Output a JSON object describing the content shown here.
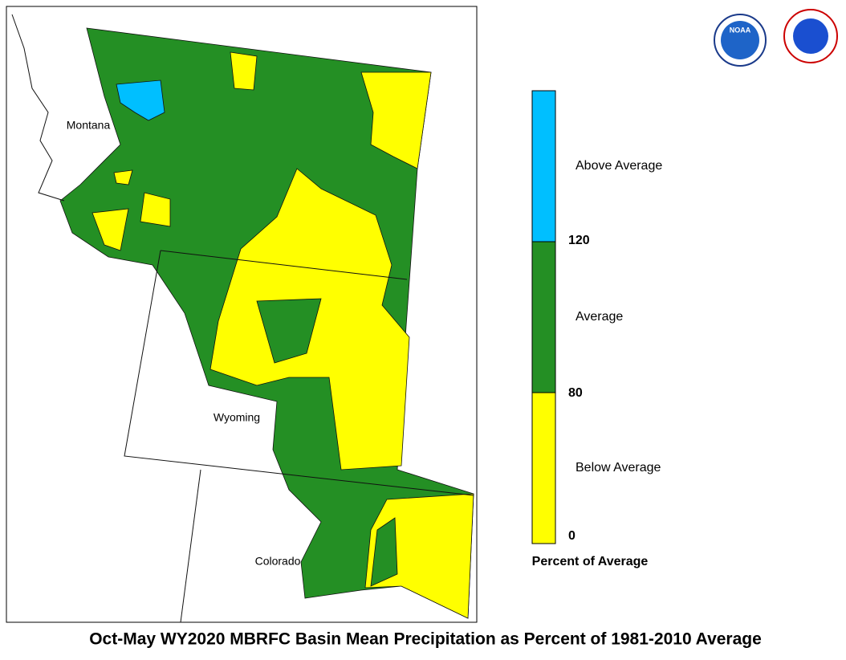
{
  "map": {
    "title": "Oct-May WY2020 MBRFC Basin Mean Precipitation as Percent of 1981-2010 Average",
    "states": [
      "Montana",
      "Wyoming",
      "Colorado"
    ],
    "logo_text": "NOAA",
    "legend": {
      "title": "Percent of Average",
      "classes": [
        {
          "label": "Above Average",
          "color": "#00bfff"
        },
        {
          "label": "Average",
          "color": "#248f24"
        },
        {
          "label": "Below Average",
          "color": "#ffff00"
        }
      ],
      "ticks": [
        120,
        80,
        0
      ]
    }
  }
}
